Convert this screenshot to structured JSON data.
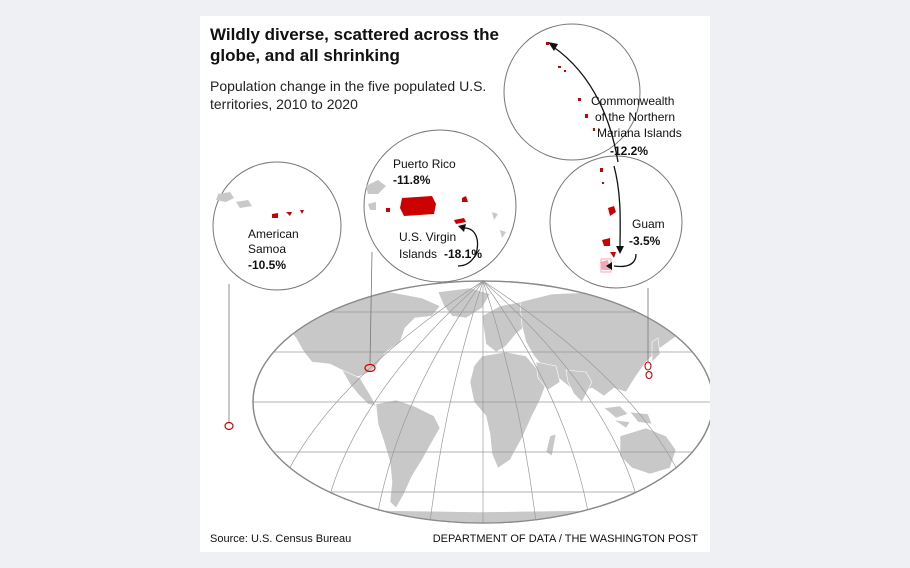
{
  "title": "Wildly diverse, scattered across the globe, and all shrinking",
  "subtitle": "Population change in the five populated U.S. territories, 2010 to 2020",
  "territories": {
    "american_samoa": {
      "name_line1": "American",
      "name_line2": "Samoa",
      "change": "-10.5%"
    },
    "puerto_rico": {
      "name": "Puerto Rico",
      "change": "-11.8%"
    },
    "usvi": {
      "name_line1": "U.S. Virgin",
      "name_line2": "Islands",
      "change": "-18.1%"
    },
    "cnmi": {
      "name_line1": "Commonwealth",
      "name_line2": "of the Northern",
      "name_line3": "Mariana Islands",
      "change": "-12.2%"
    },
    "guam": {
      "name": "Guam",
      "change": "-3.5%"
    }
  },
  "source": "Source: U.S. Census Bureau",
  "credit": "DEPARTMENT OF DATA / THE WASHINGTON POST",
  "colors": {
    "territory": "#cc0000",
    "land": "#c8c8c8",
    "ocean": "#ffffff",
    "graticule": "#9a9a9a",
    "highlight": "#f4a6b6"
  }
}
